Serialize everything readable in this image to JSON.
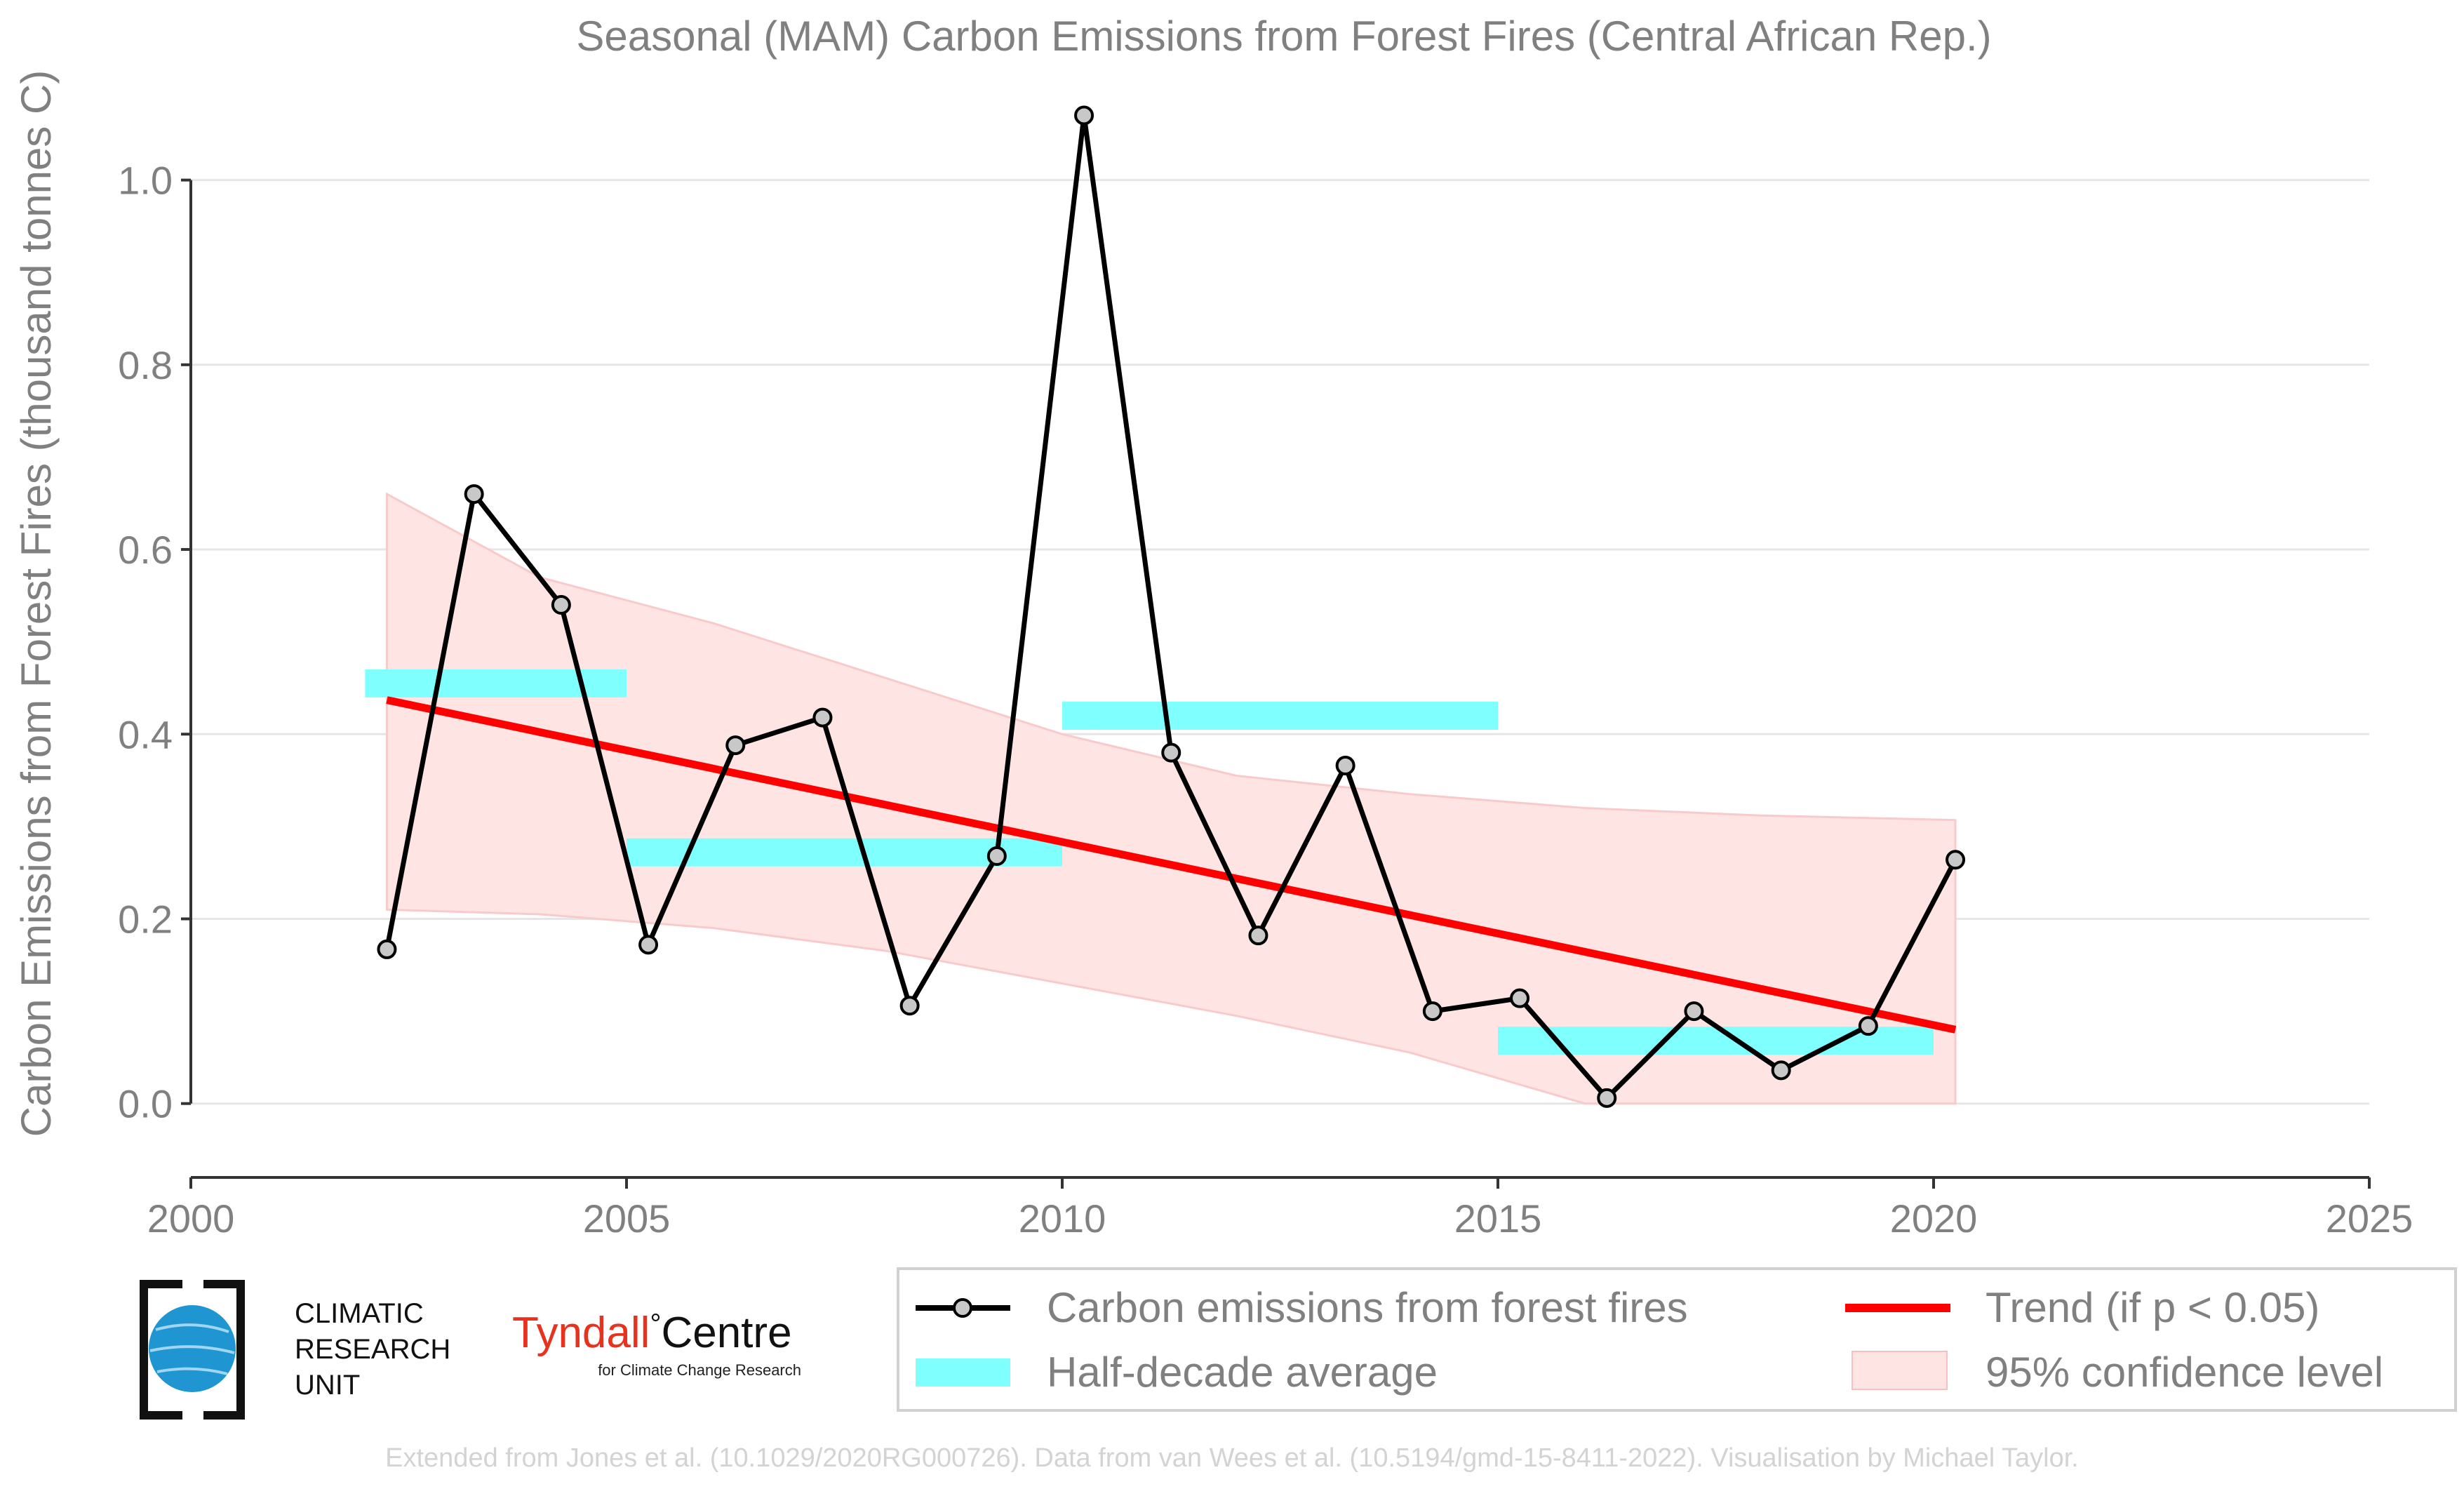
{
  "chart_data": {
    "type": "line",
    "title": "Seasonal (MAM) Carbon Emissions from Forest Fires (Central African Rep.)",
    "xlabel": "",
    "ylabel": "Carbon Emissions from Forest Fires (thousand tonnes C)",
    "xlim": [
      2000,
      2025
    ],
    "ylim": [
      -0.08,
      1.1
    ],
    "xticks": [
      2000,
      2005,
      2010,
      2015,
      2020,
      2025
    ],
    "yticks": [
      0.0,
      0.2,
      0.4,
      0.6,
      0.8,
      1.0
    ],
    "ytick_labels": [
      "0.0",
      "0.2",
      "0.4",
      "0.6",
      "0.8",
      "1.0"
    ],
    "grid": "horizontal",
    "legend_position": "bottom-right",
    "series": [
      {
        "name": "Carbon emissions from forest fires",
        "color": "#000000",
        "marker_fill": "#c8c8c8",
        "x": [
          2002.25,
          2003.25,
          2004.25,
          2005.25,
          2006.25,
          2007.25,
          2008.25,
          2009.25,
          2010.25,
          2011.25,
          2012.25,
          2013.25,
          2014.25,
          2015.25,
          2016.25,
          2017.25,
          2018.25,
          2019.25,
          2020.25
        ],
        "y": [
          0.167,
          0.66,
          0.54,
          0.172,
          0.388,
          0.418,
          0.106,
          0.268,
          1.07,
          0.38,
          0.182,
          0.366,
          0.1,
          0.114,
          0.006,
          0.1,
          0.036,
          0.084,
          0.264
        ]
      }
    ],
    "half_decade_average": {
      "name": "Half-decade average",
      "color": "#80ffff",
      "segments": [
        {
          "x0": 2002,
          "x1": 2005,
          "y": 0.455
        },
        {
          "x0": 2005,
          "x1": 2010,
          "y": 0.272
        },
        {
          "x0": 2010,
          "x1": 2015,
          "y": 0.42
        },
        {
          "x0": 2015,
          "x1": 2020,
          "y": 0.068
        }
      ]
    },
    "trend": {
      "name": "Trend (if p < 0.05)",
      "color": "#ff0000",
      "x": [
        2002.25,
        2020.25
      ],
      "y": [
        0.437,
        0.08
      ]
    },
    "confidence_band": {
      "name": "95% confidence level",
      "color": "#ffe4e4",
      "x": [
        2002.25,
        2004,
        2006,
        2008,
        2010,
        2012,
        2014,
        2016,
        2018,
        2020.25
      ],
      "upper": [
        0.66,
        0.57,
        0.52,
        0.46,
        0.4,
        0.355,
        0.335,
        0.32,
        0.312,
        0.307
      ],
      "lower": [
        0.21,
        0.205,
        0.19,
        0.165,
        0.13,
        0.095,
        0.055,
        0.0,
        0.0,
        0.0
      ]
    }
  },
  "legend": {
    "items": [
      {
        "label": "Carbon emissions from forest fires"
      },
      {
        "label": "Trend (if p < 0.05)"
      },
      {
        "label": "Half-decade average"
      },
      {
        "label": "95% confidence level"
      }
    ]
  },
  "logos": {
    "cru": {
      "line1": "CLIMATIC",
      "line2": "RESEARCH",
      "line3": "UNIT"
    },
    "tyndall": {
      "name_a": "Tyndall",
      "degree": "°",
      "name_b": "Centre",
      "subtitle": "for Climate Change Research",
      "color": "#e8321e"
    }
  },
  "footer": "Extended from Jones et al. (10.1029/2020RG000726). Data from van Wees et al. (10.5194/gmd-15-8411-2022). Visualisation by Michael Taylor."
}
